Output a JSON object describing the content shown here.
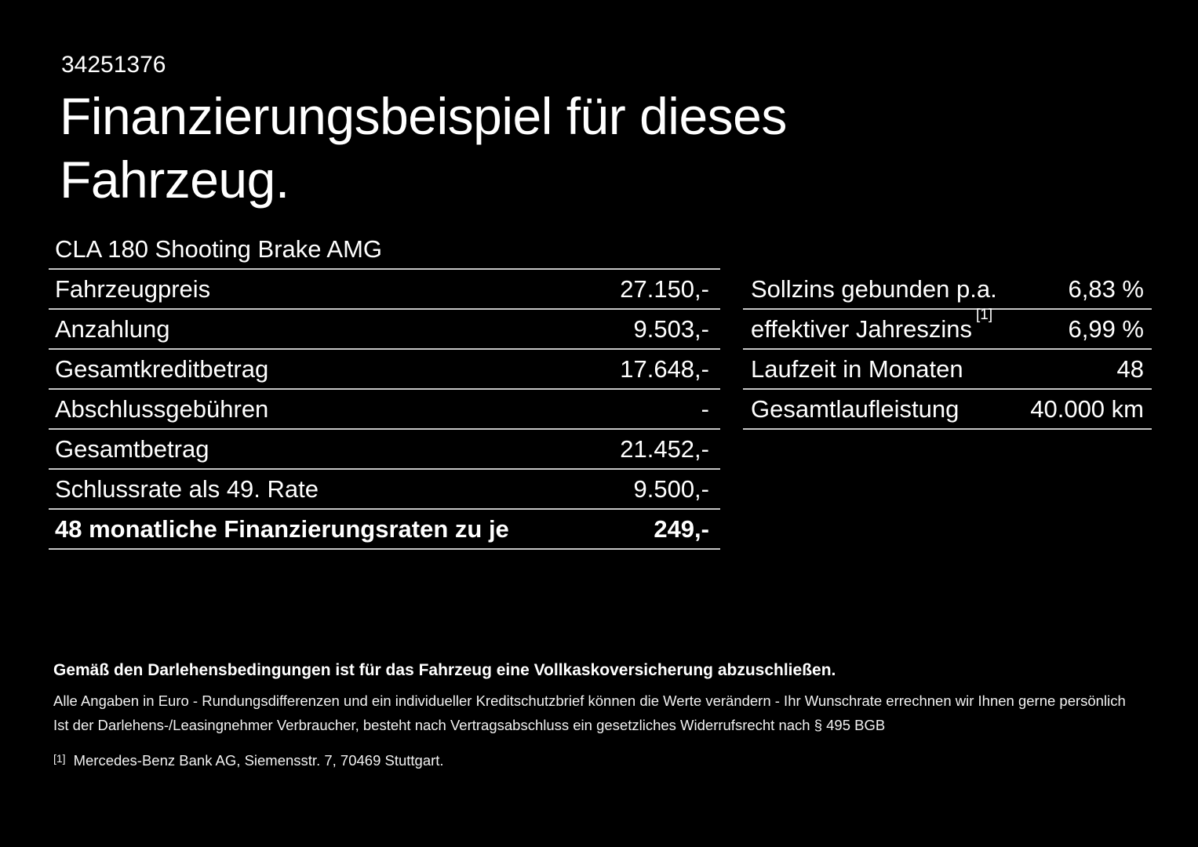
{
  "header": {
    "id_number": "34251376",
    "title_line1": "Finanzierungsbeispiel für dieses",
    "title_line2": "Fahrzeug.",
    "vehicle_name": "CLA 180 Shooting Brake AMG"
  },
  "financing_table": {
    "rows": [
      {
        "label": "Fahrzeugpreis",
        "value": "27.150,-"
      },
      {
        "label": "Anzahlung",
        "value": "9.503,-"
      },
      {
        "label": "Gesamtkreditbetrag",
        "value": "17.648,-"
      },
      {
        "label": "Abschlussgebühren",
        "value": "-"
      },
      {
        "label": "Gesamtbetrag",
        "value": "21.452,-"
      },
      {
        "label": "Schlussrate als 49. Rate",
        "value": "9.500,-"
      },
      {
        "label": "48 monatliche Finanzierungsraten zu je",
        "value": "249,-",
        "bold": true
      }
    ]
  },
  "conditions_table": {
    "rows": [
      {
        "label": "Sollzins gebunden p.a.",
        "value": "6,83 %"
      },
      {
        "label": "effektiver Jahreszins",
        "footnote": "[1]",
        "value": "6,99 %"
      },
      {
        "label": "Laufzeit in Monaten",
        "value": "48"
      },
      {
        "label": "Gesamtlaufleistung",
        "value": "40.000 km"
      }
    ]
  },
  "fine_print": {
    "insurance_note": "Gemäß den Darlehensbedingungen ist für das Fahrzeug eine Vollkaskoversicherung abzuschließen.",
    "euro_note": "Alle Angaben in Euro - Rundungsdifferenzen und ein individueller Kreditschutzbrief können die Werte verändern - Ihr Wunschrate errechnen wir Ihnen gerne persönlich",
    "withdrawal_note": "Ist der Darlehens-/Leasingnehmer Verbraucher, besteht nach Vertragsabschluss ein gesetzliches Widerrufsrecht nach § 495 BGB",
    "footnote_marker": "[1]",
    "footnote_text": "Mercedes-Benz Bank AG, Siemensstr. 7, 70469 Stuttgart."
  },
  "colors": {
    "background": "#000000",
    "text": "#ffffff",
    "divider": "#c6c6c6"
  }
}
